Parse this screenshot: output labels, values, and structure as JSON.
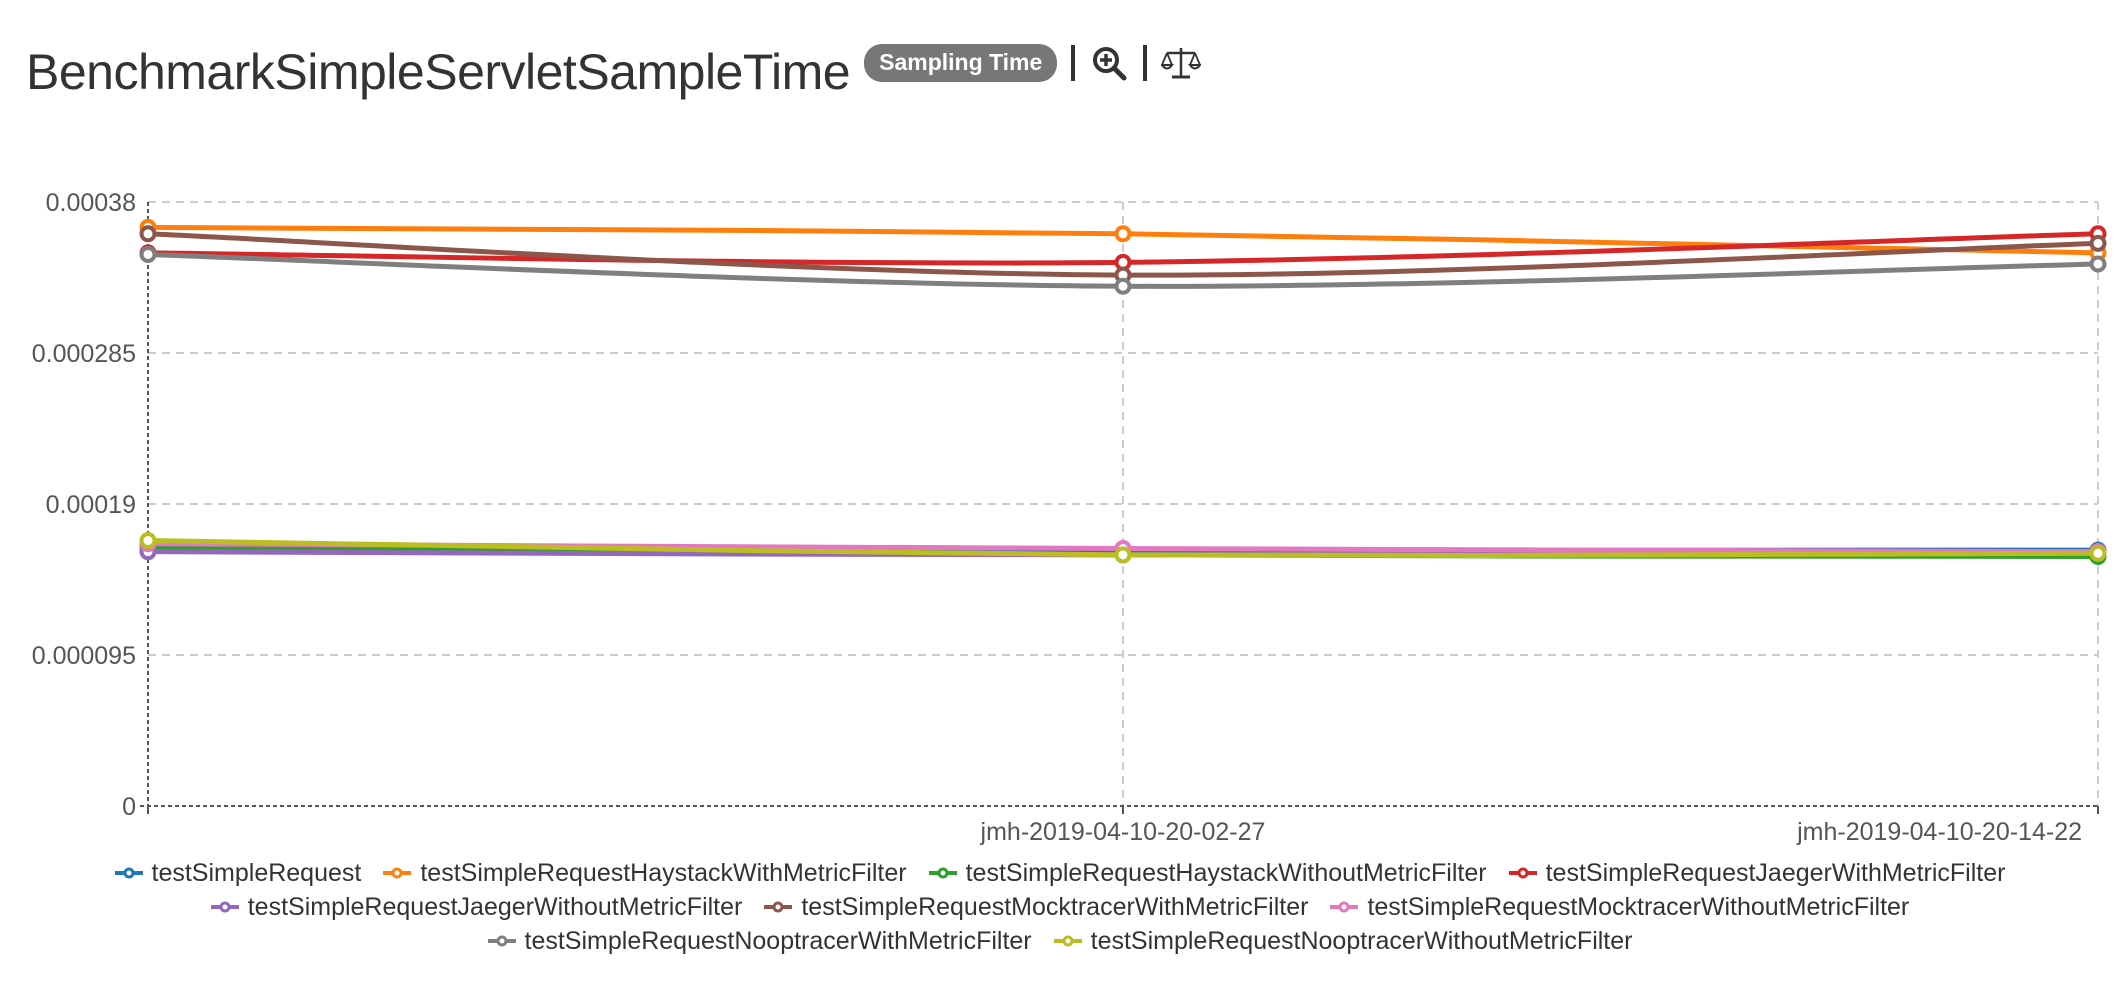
{
  "header": {
    "title": "BenchmarkSimpleServletSampleTime",
    "badge": "Sampling Time",
    "zoom_icon": "zoom-in-icon",
    "compare_icon": "balance-scale-icon"
  },
  "chart_data": {
    "type": "line",
    "categories": [
      "",
      "jmh-2019-04-10-20-02-27",
      "jmh-2019-04-10-20-14-22"
    ],
    "ylim": [
      0,
      0.00038
    ],
    "yticks": [
      "0",
      "0.000095",
      "0.00019",
      "0.000285",
      "0.00038"
    ],
    "grid": true,
    "legend_position": "bottom",
    "series": [
      {
        "name": "testSimpleRequest",
        "color": "#1f77b4",
        "values": [
          0.000163,
          0.000161,
          0.000161
        ]
      },
      {
        "name": "testSimpleRequestHaystackWithMetricFilter",
        "color": "#ff7f0e",
        "values": [
          0.000364,
          0.00036,
          0.000348
        ]
      },
      {
        "name": "testSimpleRequestHaystackWithoutMetricFilter",
        "color": "#2ca02c",
        "values": [
          0.000163,
          0.000158,
          0.000157
        ]
      },
      {
        "name": "testSimpleRequestJaegerWithMetricFilter",
        "color": "#d62728",
        "values": [
          0.000348,
          0.000342,
          0.00036
        ]
      },
      {
        "name": "testSimpleRequestJaegerWithoutMetricFilter",
        "color": "#9467bd",
        "values": [
          0.00016,
          0.000158,
          0.00016
        ]
      },
      {
        "name": "testSimpleRequestMocktracerWithMetricFilter",
        "color": "#8c564b",
        "values": [
          0.00036,
          0.000334,
          0.000354
        ]
      },
      {
        "name": "testSimpleRequestMocktracerWithoutMetricFilter",
        "color": "#e377c2",
        "values": [
          0.000165,
          0.000162,
          0.00016
        ]
      },
      {
        "name": "testSimpleRequestNooptracerWithMetricFilter",
        "color": "#7f7f7f",
        "values": [
          0.000347,
          0.000327,
          0.000341
        ]
      },
      {
        "name": "testSimpleRequestNooptracerWithoutMetricFilter",
        "color": "#bcbd22",
        "values": [
          0.000167,
          0.000158,
          0.000159
        ]
      }
    ]
  }
}
